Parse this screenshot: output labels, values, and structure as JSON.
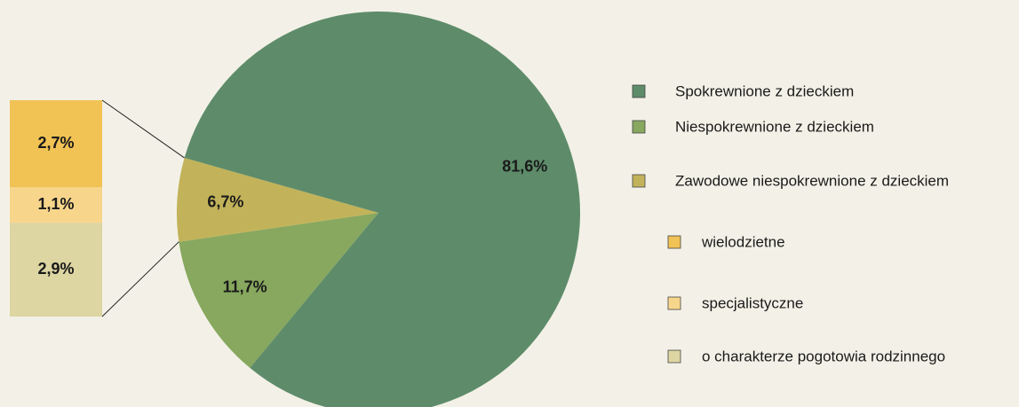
{
  "chart_data": {
    "type": "pie",
    "categories": [
      "Spokrewnione z dzieckiem",
      "Niespokrewnione z dzieckiem",
      "Zawodowe niespokrewnione z dzieckiem"
    ],
    "values": [
      81.6,
      11.7,
      6.7
    ],
    "value_labels": [
      "81,6%",
      "11,7%",
      "6,7%"
    ],
    "colors": [
      "#5e8c6a",
      "#87a85e",
      "#c2b35a"
    ],
    "breakdown": {
      "categories": [
        "wielodzietne",
        "specjalistyczne",
        "o charakterze pogotowia rodzinnego"
      ],
      "values": [
        2.7,
        1.1,
        2.9
      ],
      "value_labels": [
        "2,7%",
        "1,1%",
        "2,9%"
      ],
      "colors": [
        "#f1c254",
        "#f7d68c",
        "#ddd5a2"
      ]
    }
  }
}
